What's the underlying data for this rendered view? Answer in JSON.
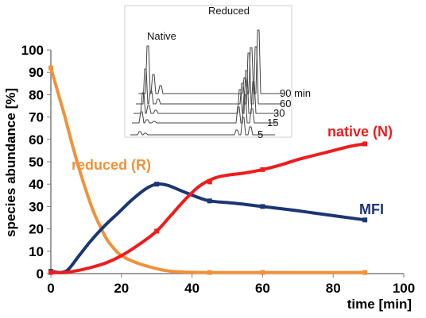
{
  "chart_data": {
    "type": "line",
    "xlabel": "time [min]",
    "ylabel": "species abundance [%]",
    "xlim": [
      0,
      100
    ],
    "ylim": [
      0,
      100
    ],
    "x_ticks": [
      0,
      20,
      40,
      60,
      80,
      100
    ],
    "y_ticks": [
      0,
      10,
      20,
      30,
      40,
      50,
      60,
      70,
      80,
      90,
      100
    ],
    "grid": false,
    "series": [
      {
        "name": "reduced (R)",
        "color": "#f0923a",
        "points": [
          [
            0,
            92
          ],
          [
            2,
            81
          ],
          [
            4,
            70
          ],
          [
            6,
            58
          ],
          [
            8,
            47
          ],
          [
            10,
            37
          ],
          [
            12,
            28
          ],
          [
            14,
            21
          ],
          [
            16,
            15
          ],
          [
            18,
            11
          ],
          [
            20,
            8
          ],
          [
            24,
            5
          ],
          [
            28,
            3
          ],
          [
            32,
            1.5
          ],
          [
            36,
            0.8
          ],
          [
            45,
            0.5
          ],
          [
            60,
            0.5
          ],
          [
            75,
            0.5
          ],
          [
            89,
            0.5
          ]
        ],
        "markers": [
          [
            0,
            92
          ],
          [
            45,
            0.5
          ],
          [
            60,
            0.5
          ],
          [
            89,
            0.5
          ]
        ]
      },
      {
        "name": "MFI",
        "color": "#1c3672",
        "points": [
          [
            0,
            1
          ],
          [
            3,
            0.5
          ],
          [
            5,
            2
          ],
          [
            8,
            8
          ],
          [
            11,
            14
          ],
          [
            15,
            21
          ],
          [
            19,
            27
          ],
          [
            23,
            33
          ],
          [
            27,
            38
          ],
          [
            30,
            40
          ],
          [
            33,
            39.5
          ],
          [
            37,
            37
          ],
          [
            41,
            34.5
          ],
          [
            45,
            32.5
          ],
          [
            52,
            31.5
          ],
          [
            60,
            30
          ],
          [
            68,
            28.5
          ],
          [
            75,
            27
          ],
          [
            82,
            25.5
          ],
          [
            89,
            24
          ]
        ],
        "markers": [
          [
            0,
            1
          ],
          [
            30,
            40
          ],
          [
            45,
            32.5
          ],
          [
            60,
            30
          ],
          [
            89,
            24
          ]
        ]
      },
      {
        "name": "native (N)",
        "color": "#ee1c1c",
        "points": [
          [
            0,
            0.5
          ],
          [
            4,
            0.5
          ],
          [
            8,
            1.5
          ],
          [
            12,
            3
          ],
          [
            16,
            5
          ],
          [
            20,
            8
          ],
          [
            25,
            13
          ],
          [
            30,
            19
          ],
          [
            34,
            26
          ],
          [
            38,
            33
          ],
          [
            42,
            39
          ],
          [
            46,
            42.5
          ],
          [
            50,
            44
          ],
          [
            55,
            45
          ],
          [
            60,
            46.5
          ],
          [
            65,
            48.5
          ],
          [
            70,
            51
          ],
          [
            75,
            53
          ],
          [
            80,
            55
          ],
          [
            85,
            57
          ],
          [
            89,
            58
          ]
        ],
        "markers": [
          [
            0,
            0.5
          ],
          [
            30,
            19
          ],
          [
            45,
            41
          ],
          [
            60,
            46.5
          ],
          [
            89,
            58
          ]
        ]
      }
    ],
    "inset": {
      "title_left": "Native",
      "title_right": "Reduced",
      "trace_labels": [
        "90 min",
        "60",
        "30",
        "15",
        "5"
      ]
    }
  }
}
